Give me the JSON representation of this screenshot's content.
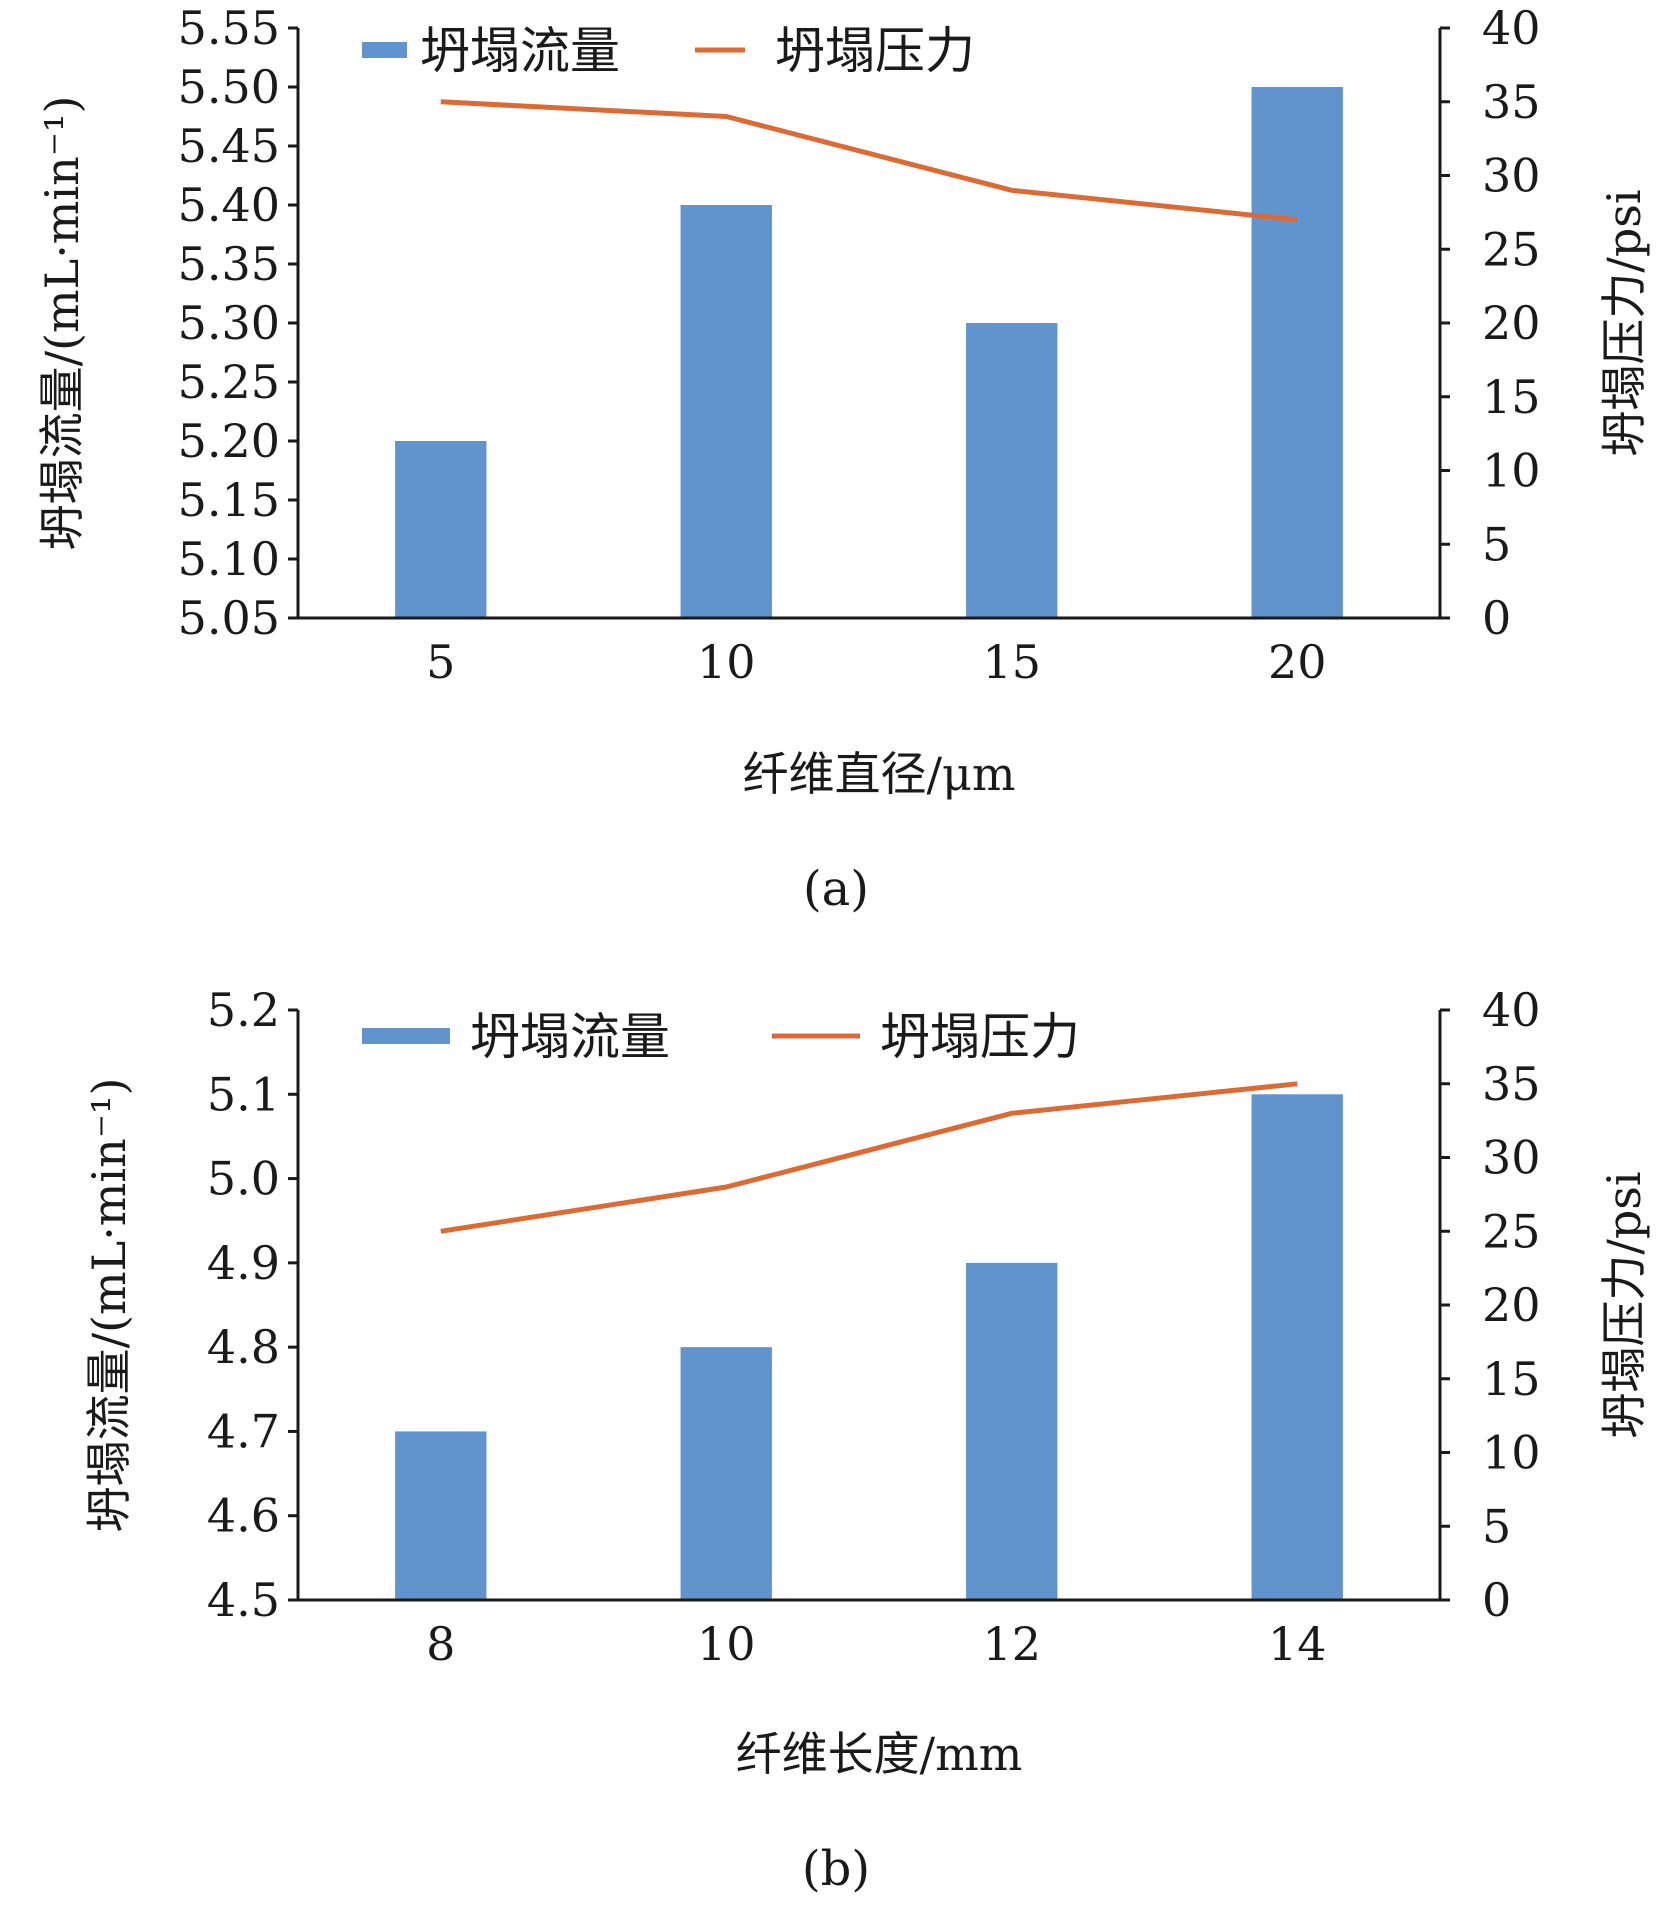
{
  "colors": {
    "bar": "#6194cc",
    "line": "#dc6a35",
    "axis": "#1a1a1a"
  },
  "chart_data": [
    {
      "type": "bar",
      "panel_label": "(a)",
      "categories": [
        "5",
        "10",
        "15",
        "20"
      ],
      "xlabel": "纤维直径/μm",
      "ylabel": "坍塌流量/(mL·min⁻¹)",
      "y2label": "坍塌压力/psi",
      "ylim": [
        5.05,
        5.55
      ],
      "yticks": [
        "5.05",
        "5.10",
        "5.15",
        "5.20",
        "5.25",
        "5.30",
        "5.35",
        "5.40",
        "5.45",
        "5.50",
        "5.55"
      ],
      "y2lim": [
        0,
        40
      ],
      "y2ticks": [
        "0",
        "5",
        "10",
        "15",
        "20",
        "25",
        "30",
        "35",
        "40"
      ],
      "series": [
        {
          "name": "坍塌流量",
          "type": "bar",
          "axis": "left",
          "values": [
            5.2,
            5.4,
            5.3,
            5.5
          ]
        },
        {
          "name": "坍塌压力",
          "type": "line",
          "axis": "right",
          "values": [
            35.0,
            34.0,
            29.0,
            27.0
          ]
        }
      ],
      "legend_position": "top"
    },
    {
      "type": "bar",
      "panel_label": "(b)",
      "categories": [
        "8",
        "10",
        "12",
        "14"
      ],
      "xlabel": "纤维长度/mm",
      "ylabel": "坍塌流量/(mL·min⁻¹)",
      "y2label": "坍塌压力/psi",
      "ylim": [
        4.5,
        5.2
      ],
      "yticks": [
        "4.5",
        "4.6",
        "4.7",
        "4.8",
        "4.9",
        "5.0",
        "5.1",
        "5.2"
      ],
      "y2lim": [
        0,
        40
      ],
      "y2ticks": [
        "0",
        "5",
        "10",
        "15",
        "20",
        "25",
        "30",
        "35",
        "40"
      ],
      "series": [
        {
          "name": "坍塌流量",
          "type": "bar",
          "axis": "left",
          "values": [
            4.7,
            4.8,
            4.9,
            5.1
          ]
        },
        {
          "name": "坍塌压力",
          "type": "line",
          "axis": "right",
          "values": [
            25.0,
            28.0,
            33.0,
            35.0
          ]
        }
      ],
      "legend_position": "top"
    }
  ]
}
